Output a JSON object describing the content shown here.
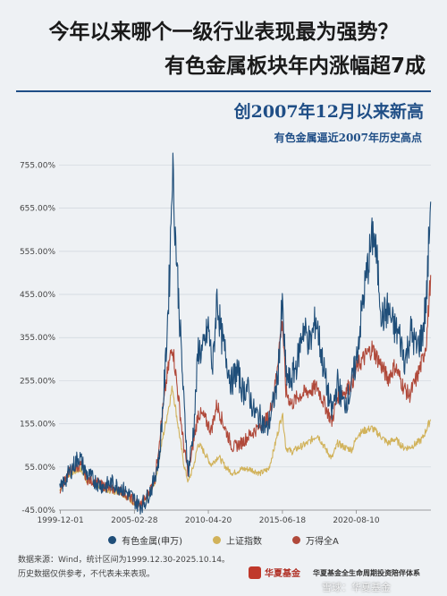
{
  "header": {
    "title1": "今年以来哪个一级行业表现最为强势？",
    "title2": "有色金属板块年内涨幅超7成",
    "subtitle": "创2007年12月以来新高",
    "annotation": "有色金属逼近2007年历史高点"
  },
  "footer": {
    "source": "数据来源：Wind，统计区间为1999.12.30-2025.10.14。",
    "disclaimer": "历史数据仅供参考，不代表未来表现。",
    "brand": "华夏基金",
    "slogan": "华夏基金全生命周期投资陪伴体系",
    "watermark": "雪球：华夏基金"
  },
  "chart_data": {
    "type": "line",
    "x_ticks": [
      "1999-12-01",
      "2005-02-28",
      "2010-04-20",
      "2015-06-18",
      "2020-08-10"
    ],
    "y_ticks": [
      "-45.00%",
      "55.00%",
      "155.00%",
      "255.00%",
      "355.00%",
      "455.00%",
      "555.00%",
      "655.00%",
      "755.00%"
    ],
    "ylim": [
      -45,
      785
    ],
    "xlim": [
      1999.9,
      2025.8
    ],
    "series": [
      {
        "name": "有色金属(申万)",
        "color": "#1f4e79",
        "points": [
          [
            1999.95,
            0
          ],
          [
            2000.5,
            35
          ],
          [
            2001.3,
            80
          ],
          [
            2001.8,
            40
          ],
          [
            2002.5,
            20
          ],
          [
            2003.0,
            10
          ],
          [
            2003.6,
            18
          ],
          [
            2004.3,
            5
          ],
          [
            2005.0,
            -15
          ],
          [
            2005.5,
            -35
          ],
          [
            2005.9,
            -25
          ],
          [
            2006.4,
            10
          ],
          [
            2006.9,
            80
          ],
          [
            2007.3,
            280
          ],
          [
            2007.6,
            500
          ],
          [
            2007.8,
            760
          ],
          [
            2008.0,
            600
          ],
          [
            2008.3,
            400
          ],
          [
            2008.6,
            200
          ],
          [
            2008.9,
            40
          ],
          [
            2009.3,
            150
          ],
          [
            2009.6,
            330
          ],
          [
            2009.9,
            320
          ],
          [
            2010.3,
            380
          ],
          [
            2010.6,
            280
          ],
          [
            2010.9,
            450
          ],
          [
            2011.2,
            360
          ],
          [
            2011.6,
            300
          ],
          [
            2011.9,
            250
          ],
          [
            2012.3,
            280
          ],
          [
            2012.7,
            230
          ],
          [
            2013.0,
            240
          ],
          [
            2013.5,
            180
          ],
          [
            2013.9,
            170
          ],
          [
            2014.4,
            140
          ],
          [
            2014.8,
            200
          ],
          [
            2015.1,
            250
          ],
          [
            2015.45,
            430
          ],
          [
            2015.7,
            270
          ],
          [
            2016.0,
            250
          ],
          [
            2016.5,
            300
          ],
          [
            2016.9,
            380
          ],
          [
            2017.4,
            340
          ],
          [
            2017.8,
            400
          ],
          [
            2018.2,
            310
          ],
          [
            2018.6,
            230
          ],
          [
            2018.9,
            180
          ],
          [
            2019.3,
            250
          ],
          [
            2019.7,
            200
          ],
          [
            2020.1,
            220
          ],
          [
            2020.6,
            300
          ],
          [
            2021.0,
            420
          ],
          [
            2021.4,
            520
          ],
          [
            2021.8,
            600
          ],
          [
            2022.1,
            510
          ],
          [
            2022.4,
            400
          ],
          [
            2022.8,
            420
          ],
          [
            2023.2,
            380
          ],
          [
            2023.6,
            360
          ],
          [
            2024.0,
            300
          ],
          [
            2024.4,
            370
          ],
          [
            2024.8,
            330
          ],
          [
            2025.2,
            360
          ],
          [
            2025.5,
            450
          ],
          [
            2025.78,
            670
          ]
        ]
      },
      {
        "name": "上证指数",
        "color": "#d1b25a",
        "points": [
          [
            1999.95,
            0
          ],
          [
            2000.5,
            35
          ],
          [
            2001.4,
            50
          ],
          [
            2001.9,
            20
          ],
          [
            2002.5,
            15
          ],
          [
            2003.3,
            0
          ],
          [
            2004.2,
            -5
          ],
          [
            2005.0,
            -25
          ],
          [
            2005.5,
            -35
          ],
          [
            2006.0,
            -20
          ],
          [
            2006.6,
            20
          ],
          [
            2007.0,
            100
          ],
          [
            2007.4,
            170
          ],
          [
            2007.8,
            240
          ],
          [
            2008.2,
            150
          ],
          [
            2008.6,
            60
          ],
          [
            2008.9,
            20
          ],
          [
            2009.3,
            60
          ],
          [
            2009.6,
            110
          ],
          [
            2010.0,
            90
          ],
          [
            2010.5,
            60
          ],
          [
            2011.0,
            80
          ],
          [
            2011.5,
            55
          ],
          [
            2012.0,
            40
          ],
          [
            2012.6,
            50
          ],
          [
            2013.2,
            50
          ],
          [
            2013.9,
            40
          ],
          [
            2014.5,
            50
          ],
          [
            2014.9,
            100
          ],
          [
            2015.45,
            180
          ],
          [
            2015.7,
            100
          ],
          [
            2016.1,
            90
          ],
          [
            2016.6,
            100
          ],
          [
            2017.2,
            110
          ],
          [
            2017.9,
            130
          ],
          [
            2018.4,
            100
          ],
          [
            2018.9,
            75
          ],
          [
            2019.3,
            110
          ],
          [
            2019.8,
            100
          ],
          [
            2020.3,
            95
          ],
          [
            2020.7,
            130
          ],
          [
            2021.2,
            140
          ],
          [
            2021.7,
            145
          ],
          [
            2022.2,
            130
          ],
          [
            2022.8,
            110
          ],
          [
            2023.3,
            120
          ],
          [
            2023.9,
            100
          ],
          [
            2024.3,
            100
          ],
          [
            2024.8,
            110
          ],
          [
            2025.2,
            120
          ],
          [
            2025.78,
            165
          ]
        ]
      },
      {
        "name": "万得全A",
        "color": "#b0493a",
        "points": [
          [
            1999.95,
            0
          ],
          [
            2000.5,
            40
          ],
          [
            2001.4,
            60
          ],
          [
            2001.9,
            25
          ],
          [
            2002.5,
            20
          ],
          [
            2003.3,
            5
          ],
          [
            2004.2,
            0
          ],
          [
            2005.0,
            -20
          ],
          [
            2005.5,
            -35
          ],
          [
            2006.0,
            -15
          ],
          [
            2006.6,
            30
          ],
          [
            2007.0,
            150
          ],
          [
            2007.4,
            260
          ],
          [
            2007.8,
            340
          ],
          [
            2008.2,
            220
          ],
          [
            2008.6,
            100
          ],
          [
            2008.9,
            40
          ],
          [
            2009.3,
            120
          ],
          [
            2009.6,
            180
          ],
          [
            2010.0,
            170
          ],
          [
            2010.5,
            140
          ],
          [
            2010.9,
            200
          ],
          [
            2011.4,
            150
          ],
          [
            2012.0,
            100
          ],
          [
            2012.6,
            110
          ],
          [
            2013.2,
            130
          ],
          [
            2013.9,
            150
          ],
          [
            2014.5,
            170
          ],
          [
            2014.9,
            230
          ],
          [
            2015.45,
            400
          ],
          [
            2015.7,
            230
          ],
          [
            2016.1,
            200
          ],
          [
            2016.6,
            220
          ],
          [
            2017.2,
            230
          ],
          [
            2017.9,
            240
          ],
          [
            2018.4,
            200
          ],
          [
            2018.9,
            160
          ],
          [
            2019.3,
            220
          ],
          [
            2019.8,
            230
          ],
          [
            2020.3,
            250
          ],
          [
            2020.7,
            290
          ],
          [
            2021.2,
            310
          ],
          [
            2021.7,
            330
          ],
          [
            2022.2,
            300
          ],
          [
            2022.8,
            260
          ],
          [
            2023.3,
            290
          ],
          [
            2023.9,
            240
          ],
          [
            2024.3,
            220
          ],
          [
            2024.8,
            260
          ],
          [
            2025.2,
            300
          ],
          [
            2025.5,
            350
          ],
          [
            2025.78,
            500
          ]
        ]
      }
    ]
  }
}
